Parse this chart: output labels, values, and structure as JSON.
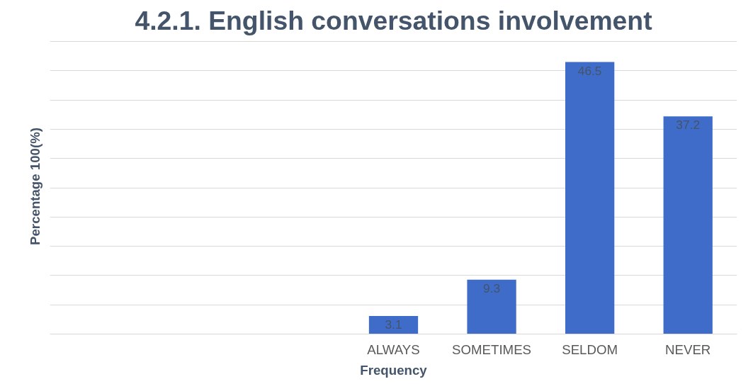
{
  "chart_data": {
    "type": "bar",
    "title": "4.2.1. English conversations involvement",
    "xlabel": "Frequency",
    "ylabel": "Percentage 100(%)",
    "categories": [
      null,
      null,
      null,
      "ALWAYS",
      "SOMETIMES",
      "SELDOM",
      "NEVER"
    ],
    "values": [
      null,
      null,
      null,
      3.1,
      9.3,
      46.5,
      37.2
    ],
    "color": "#3f6cc8",
    "yticks": [
      {
        "value": 0,
        "label": null
      },
      {
        "value": 5,
        "label": null
      },
      {
        "value": 10,
        "label": null
      },
      {
        "value": 15,
        "label": null
      },
      {
        "value": 20,
        "label": null
      },
      {
        "value": 25,
        "label": null
      },
      {
        "value": 30,
        "label": null
      },
      {
        "value": 35,
        "label": null
      },
      {
        "value": 40,
        "label": null
      },
      {
        "value": 45,
        "label": null
      },
      {
        "value": 50,
        "label": null
      }
    ],
    "tick_labels": "x",
    "grid": "y",
    "data_labels": true
  }
}
